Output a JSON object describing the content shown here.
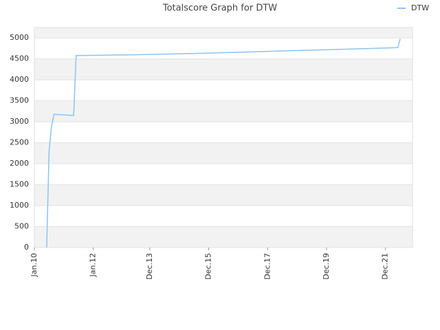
{
  "chart_data": {
    "type": "line",
    "title": "Totalscore Graph for DTW",
    "x": [
      "2010-06",
      "2010-07",
      "2010-08",
      "2010-09",
      "2010-11",
      "2011-05",
      "2011-06",
      "2012-06",
      "2013-06",
      "2014-06",
      "2015-06",
      "2016-06",
      "2017-06",
      "2018-06",
      "2019-06",
      "2020-06",
      "2021-06",
      "2022-05",
      "2022-06"
    ],
    "series": [
      {
        "name": "DTW",
        "color": "#8cc3f0",
        "values": [
          0,
          2300,
          2900,
          3180,
          3170,
          3150,
          4580,
          4590,
          4600,
          4615,
          4630,
          4650,
          4670,
          4690,
          4710,
          4730,
          4750,
          4770,
          4980
        ]
      }
    ],
    "xlim": [
      "2010-01",
      "2022-11"
    ],
    "xticks": [
      {
        "value": "2010-01",
        "label": "Jan.10"
      },
      {
        "value": "2012-01",
        "label": "Jan.12"
      },
      {
        "value": "2013-12",
        "label": "Dec.13"
      },
      {
        "value": "2015-12",
        "label": "Dec.15"
      },
      {
        "value": "2017-12",
        "label": "Dec.17"
      },
      {
        "value": "2019-12",
        "label": "Dec.19"
      },
      {
        "value": "2021-12",
        "label": "Dec.21"
      }
    ],
    "ylim": [
      0,
      5250
    ],
    "yticks": [
      0,
      500,
      1000,
      1500,
      2000,
      2500,
      3000,
      3500,
      4000,
      4500,
      5000
    ],
    "grid": true,
    "legend": "top-right"
  }
}
